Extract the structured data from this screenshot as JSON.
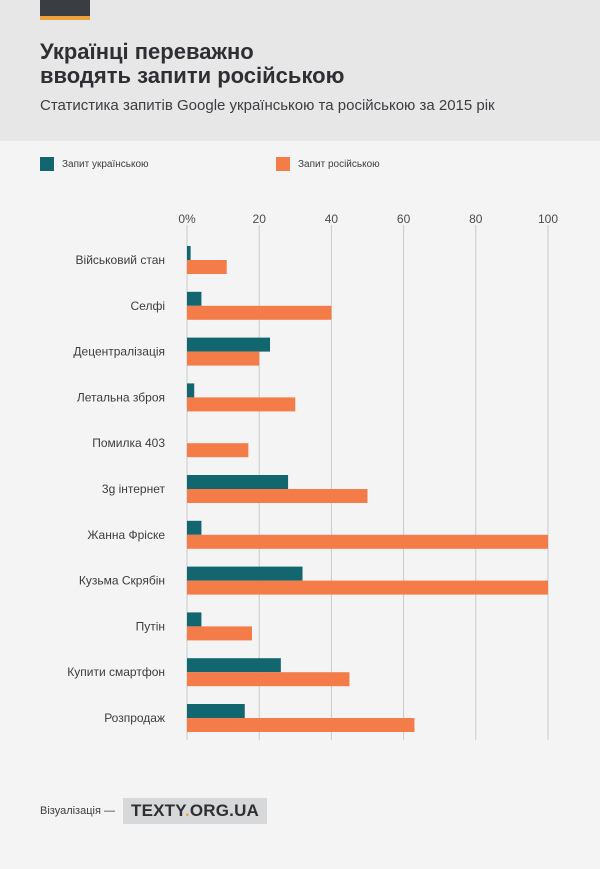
{
  "header": {
    "title_line1": "Українці переважно",
    "title_line2": "вводять запити російською",
    "subtitle": "Статистика запитів Google українською та російською за 2015 рік"
  },
  "legend": {
    "ukrainian": "Запит українською",
    "russian": "Запит російською"
  },
  "colors": {
    "ukrainian": "#11666f",
    "russian": "#f47c48",
    "header_bg": "#e7e7e8",
    "page_bg": "#f4f4f4",
    "accent": "#f0a23a"
  },
  "footer": {
    "prefix": "Візуалізація —",
    "brand_name": "TEXTY",
    "brand_dot": ".",
    "brand_domain": "ORG.UA"
  },
  "chart_data": {
    "type": "bar",
    "orientation": "horizontal",
    "categories": [
      "Військовий стан",
      "Селфі",
      "Децентралізація",
      "Летальна зброя",
      "Помилка 403",
      "3g інтернет",
      "Жанна Фріске",
      "Кузьма Скрябін",
      "Путін",
      "Купити смартфон",
      "Розпродаж"
    ],
    "series": [
      {
        "name": "Запит українською",
        "values": [
          1,
          4,
          23,
          2,
          0,
          28,
          4,
          32,
          4,
          26,
          16
        ]
      },
      {
        "name": "Запит російською",
        "values": [
          11,
          40,
          20,
          30,
          17,
          50,
          100,
          100,
          18,
          45,
          63
        ]
      }
    ],
    "x_ticks": [
      "0%",
      "20",
      "40",
      "60",
      "80",
      "100"
    ],
    "xlim": [
      0,
      100
    ],
    "grid": true,
    "legend_position": "top"
  }
}
